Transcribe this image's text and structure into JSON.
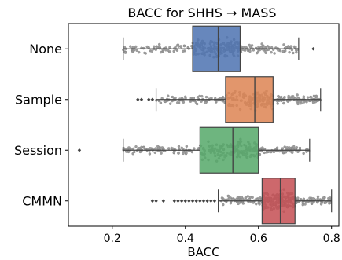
{
  "chart_data": {
    "type": "box",
    "title": "BACC for SHHS → MASS",
    "xlabel": "BACC",
    "ylabel": "",
    "xlim": [
      0.08,
      0.82
    ],
    "xticks": [
      0.2,
      0.4,
      0.6,
      0.8
    ],
    "xtick_labels": [
      "0.2",
      "0.4",
      "0.6",
      "0.8"
    ],
    "grid": false,
    "swarm_overlay": true,
    "swarm_color": "#9e9e9e",
    "categories": [
      "None",
      "Sample",
      "Session",
      "CMMN"
    ],
    "colors": [
      "#4c72b0",
      "#dd8452",
      "#55a868",
      "#c44e52"
    ],
    "boxes": [
      {
        "name": "None",
        "whisker_low": 0.23,
        "q1": 0.42,
        "median": 0.49,
        "q3": 0.55,
        "whisker_high": 0.71,
        "outliers": [
          0.75
        ]
      },
      {
        "name": "Sample",
        "whisker_low": 0.32,
        "q1": 0.51,
        "median": 0.59,
        "q3": 0.64,
        "whisker_high": 0.77,
        "outliers": [
          0.27,
          0.28,
          0.3,
          0.31
        ]
      },
      {
        "name": "Session",
        "whisker_low": 0.23,
        "q1": 0.44,
        "median": 0.53,
        "q3": 0.6,
        "whisker_high": 0.74,
        "outliers": [
          0.11
        ]
      },
      {
        "name": "CMMN",
        "whisker_low": 0.49,
        "q1": 0.61,
        "median": 0.66,
        "q3": 0.7,
        "whisker_high": 0.8,
        "outliers": [
          0.31,
          0.32,
          0.34,
          0.37,
          0.38,
          0.39,
          0.4,
          0.41,
          0.42,
          0.43,
          0.44,
          0.45,
          0.46,
          0.47,
          0.48
        ]
      }
    ]
  }
}
